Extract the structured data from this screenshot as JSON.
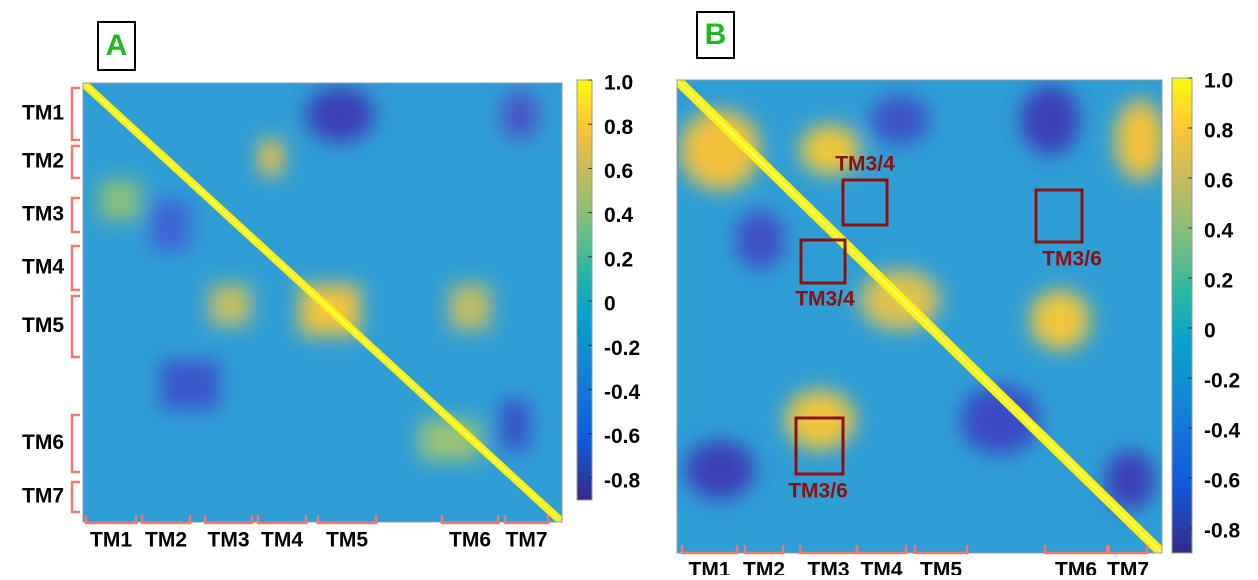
{
  "chart_data": [
    {
      "type": "heatmap",
      "panel_label": "A",
      "y_regions": [
        "TM1",
        "TM2",
        "TM3",
        "TM4",
        "TM5",
        "TM6",
        "TM7"
      ],
      "x_regions": [
        "TM1",
        "TM2",
        "TM3",
        "TM4",
        "TM5",
        "TM6",
        "TM7"
      ],
      "clim": [
        -0.9,
        1.0
      ],
      "cticks": [
        {
          "value": 1,
          "label": "1.0"
        },
        0.8,
        0.6,
        0.4,
        0.2,
        0,
        -0.2,
        -0.4,
        -0.6,
        -0.8
      ]
    },
    {
      "type": "heatmap",
      "panel_label": "B",
      "x_regions": [
        "TM1",
        "TM2",
        "TM3",
        "TM4",
        "TM5",
        "TM6",
        "TM7"
      ],
      "clim": [
        -0.9,
        1.0
      ],
      "cticks": [
        {
          "value": 1,
          "label": "1.0"
        },
        0.8,
        0.6,
        0.4,
        0.2,
        0,
        -0.2,
        -0.4,
        -0.6,
        -0.8
      ],
      "annotations": [
        "TM3/4",
        "TM3/4",
        "TM3/6",
        "TM3/6"
      ]
    }
  ]
}
